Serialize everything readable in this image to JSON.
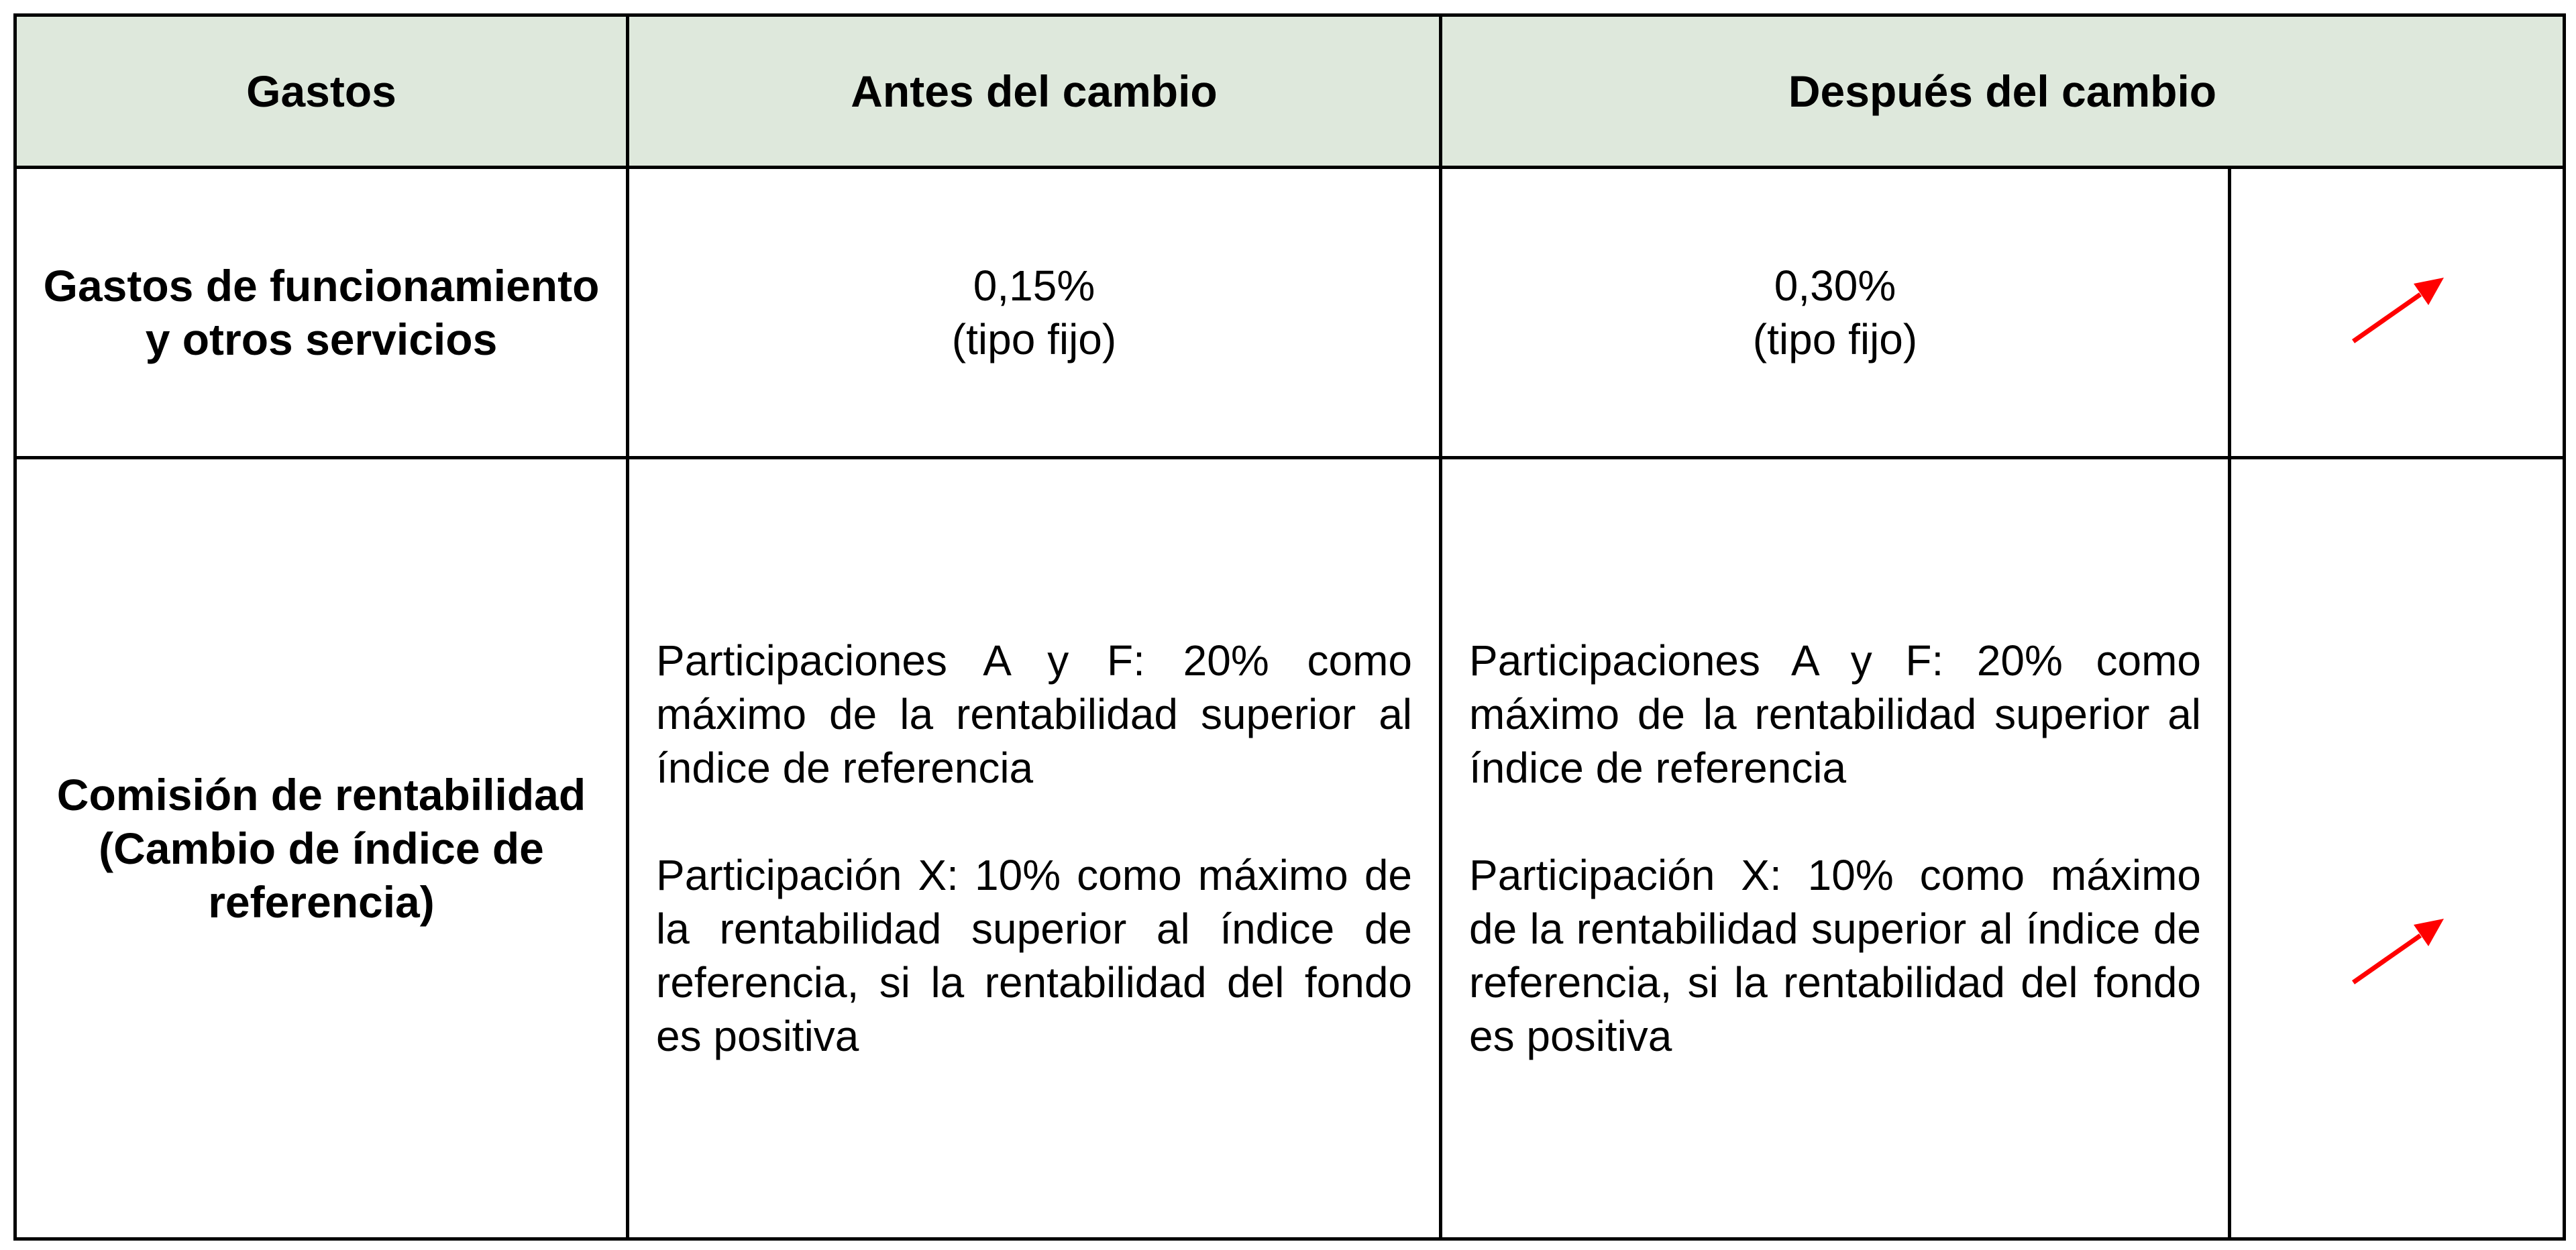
{
  "table": {
    "headers": [
      "Gastos",
      "Antes del cambio",
      "Después del cambio"
    ],
    "rows": [
      {
        "label": "Gastos de funcionamiento y otros servicios",
        "before": {
          "value": "0,15%",
          "note": "(tipo fijo)"
        },
        "after": {
          "value": "0,30%",
          "note": "(tipo fijo)"
        },
        "trend_icon": "arrow-up-right-icon"
      },
      {
        "label": "Comisión de rentabilidad (Cambio de índice de referencia)",
        "before": [
          "Participaciones A y F: 20% como máximo de la rentabilidad superior al índice de referencia",
          "Participación X: 10% como máximo de la rentabilidad superior al índice de referencia, si la rentabilidad del fondo es positiva"
        ],
        "after": [
          "Participaciones A y F: 20% como máximo de la rentabilidad superior al índice de referencia",
          "Participación X: 10% como máximo de la rentabilidad superior al índice de referencia, si la rentabilidad del fondo es positiva"
        ],
        "trend_icon": "arrow-up-right-icon"
      }
    ]
  },
  "colors": {
    "header_bg": "#dee8dc",
    "arrow": "#ff0000",
    "border": "#000000"
  }
}
